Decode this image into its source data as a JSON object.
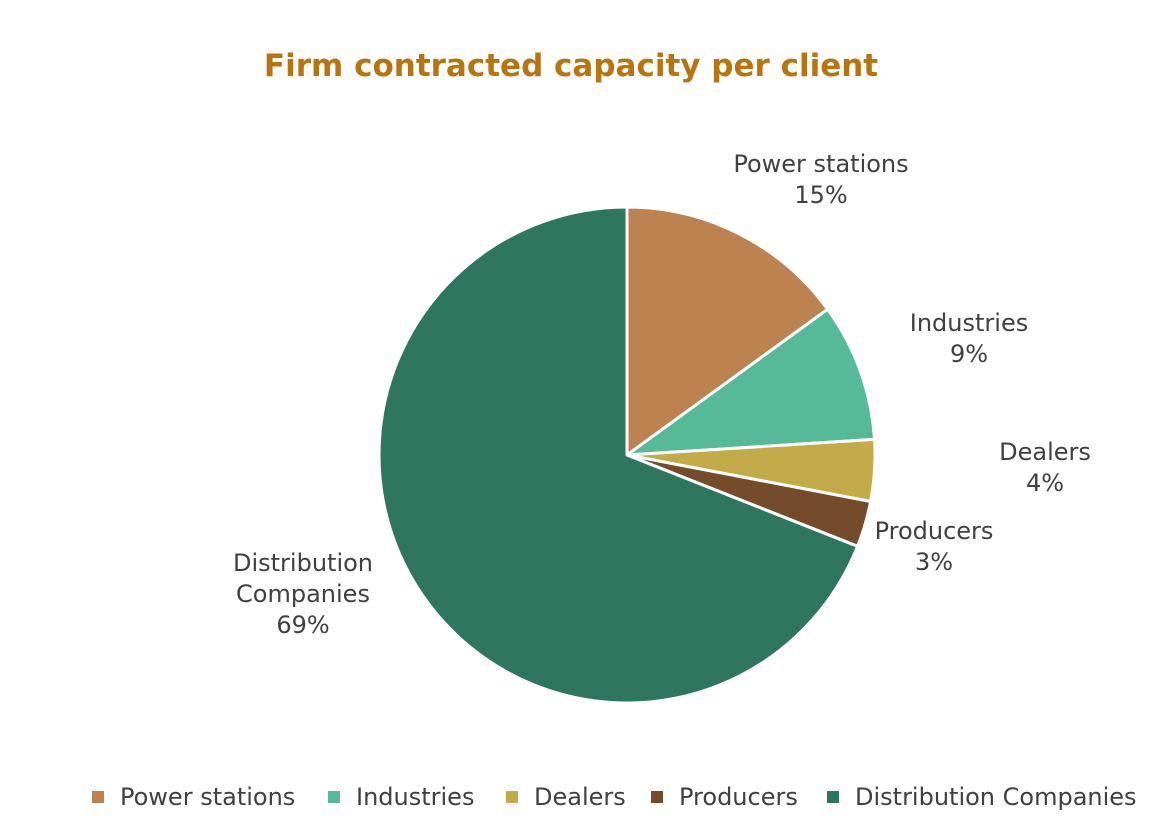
{
  "chart_data": {
    "type": "pie",
    "title": "Firm contracted capacity per client",
    "title_color": "#B8740F",
    "slices": [
      {
        "label": "Power stations",
        "label_lines": [
          "Power stations"
        ],
        "value": 15,
        "display": "15%",
        "color": "#BC824F"
      },
      {
        "label": "Industries",
        "label_lines": [
          "Industries"
        ],
        "value": 9,
        "display": "9%",
        "color": "#56BA98"
      },
      {
        "label": "Dealers",
        "label_lines": [
          "Dealers"
        ],
        "value": 4,
        "display": "4%",
        "color": "#C4AB4A"
      },
      {
        "label": "Producers",
        "label_lines": [
          "Producers"
        ],
        "value": 3,
        "display": "3%",
        "color": "#744C2C"
      },
      {
        "label": "Distribution Companies",
        "label_lines": [
          "Distribution",
          "Companies"
        ],
        "value": 69,
        "display": "69%",
        "color": "#2F765F"
      }
    ],
    "start_angle": "12 o'clock",
    "direction": "clockwise",
    "legend_position": "bottom"
  }
}
